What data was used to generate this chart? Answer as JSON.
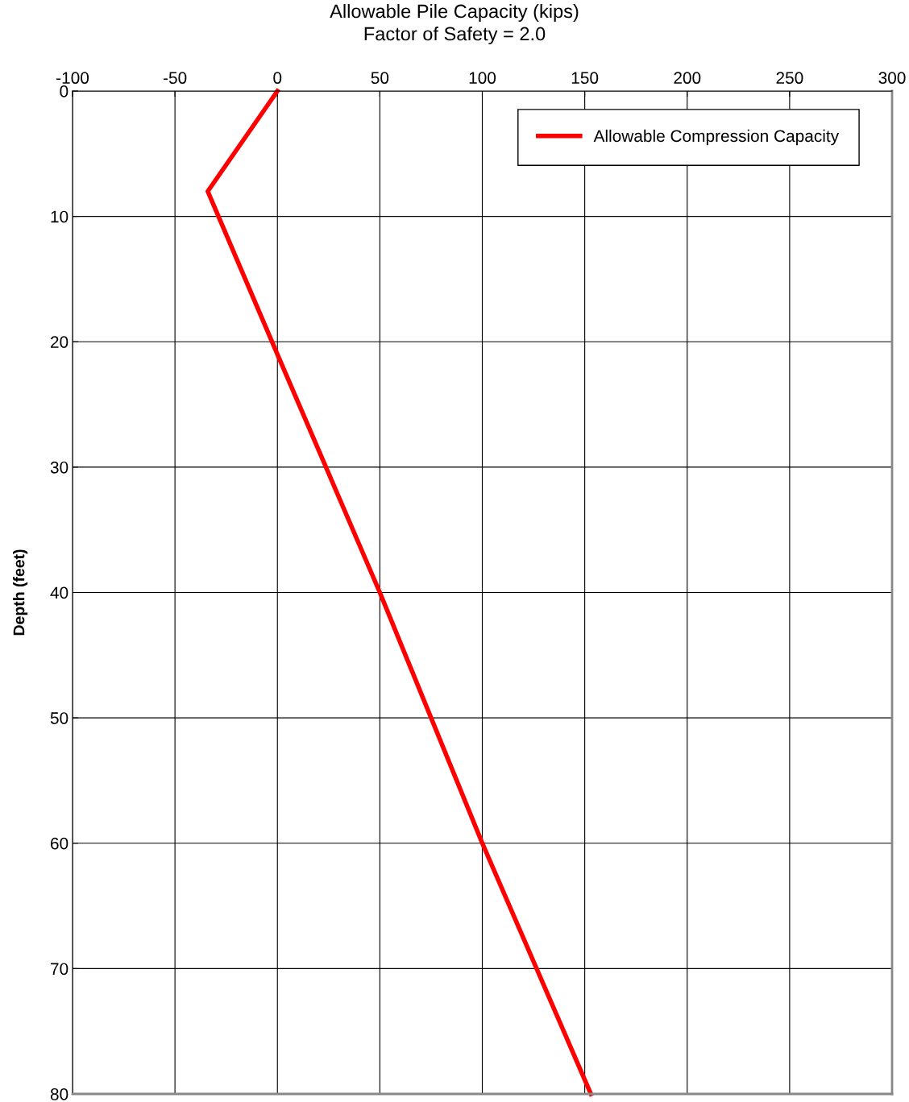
{
  "chart_data": {
    "type": "line",
    "title": "Allowable Pile Capacity (kips)",
    "subtitle": "Factor of Safety = 2.0",
    "ylabel": "Depth (feet)",
    "xlim": [
      -100,
      300
    ],
    "xticks": [
      -100,
      -50,
      0,
      50,
      100,
      150,
      200,
      250,
      300
    ],
    "ylim": [
      80,
      0
    ],
    "yticks": [
      0,
      10,
      20,
      30,
      40,
      50,
      60,
      70,
      80
    ],
    "grid": true,
    "legend": "top right",
    "marker": "none",
    "line_style": "solid",
    "series": [
      {
        "name": "Allowable Compression Capacity",
        "color": "#ff0000",
        "x": [
          0,
          -34,
          0,
          50,
          100,
          153
        ],
        "values": [
          0,
          8,
          21,
          40,
          60,
          80
        ]
      }
    ]
  }
}
